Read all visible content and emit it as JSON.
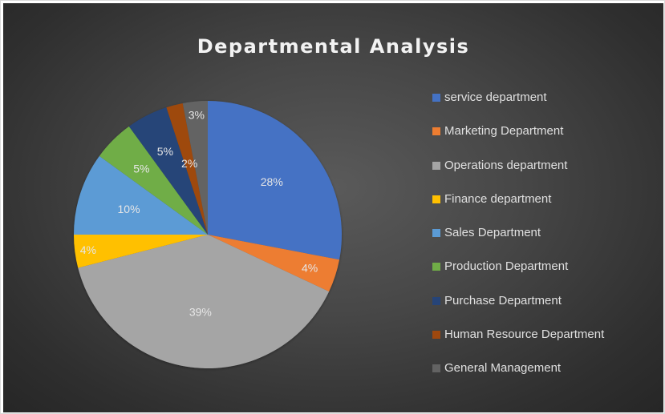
{
  "chart_data": {
    "type": "pie",
    "title": "Departmental Analysis",
    "categories": [
      "service department",
      "Marketing Department",
      "Operations department",
      "Finance department",
      "Sales Department",
      "Production Department",
      "Purchase Department",
      "Human Resource Department",
      "General Management"
    ],
    "values": [
      28,
      4,
      39,
      4,
      10,
      5,
      5,
      2,
      3
    ],
    "data_labels": [
      "28%",
      "4%",
      "39%",
      "4%",
      "10%",
      "5%",
      "5%",
      "2%",
      "3%"
    ],
    "colors": [
      "#4472c4",
      "#ed7d31",
      "#a5a5a5",
      "#ffc000",
      "#5b9bd5",
      "#70ad47",
      "#264478",
      "#9e480e",
      "#636363"
    ],
    "start_angle_deg": 0,
    "direction": "clockwise",
    "legend_position": "right"
  }
}
